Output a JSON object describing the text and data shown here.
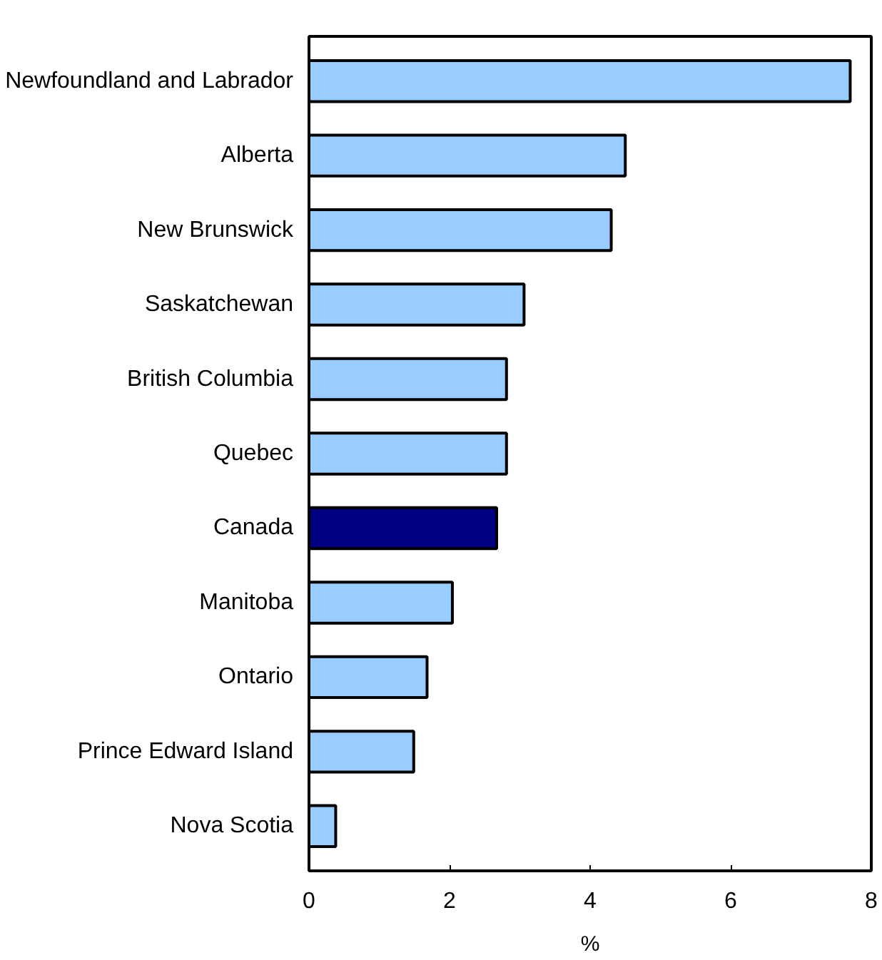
{
  "chart_data": {
    "type": "bar",
    "orientation": "horizontal",
    "xlabel": "%",
    "categories": [
      "Newfoundland and Labrador",
      "Alberta",
      "New Brunswick",
      "Saskatchewan",
      "British Columbia",
      "Quebec",
      "Canada",
      "Manitoba",
      "Ontario",
      "Prince Edward Island",
      "Nova Scotia"
    ],
    "values": [
      7.7,
      4.5,
      4.3,
      3.06,
      2.81,
      2.81,
      2.67,
      2.04,
      1.68,
      1.49,
      0.38
    ],
    "colors": [
      "#99ccff",
      "#99ccff",
      "#99ccff",
      "#99ccff",
      "#99ccff",
      "#99ccff",
      "#000080",
      "#99ccff",
      "#99ccff",
      "#99ccff",
      "#99ccff"
    ],
    "xlim": [
      0,
      8
    ],
    "xticks": [
      0,
      2,
      4,
      6,
      8
    ],
    "grid": false
  }
}
